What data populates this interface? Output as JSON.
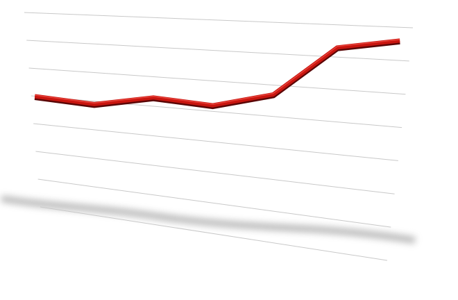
{
  "chart_data": {
    "type": "line",
    "categories": [
      null,
      null,
      null,
      null,
      null,
      null,
      null
    ],
    "values": [
      4,
      3.9,
      4.3,
      4.2,
      4.7,
      6.3,
      6.6
    ],
    "color": "#c8150f",
    "ylim": [
      0,
      7
    ],
    "yticks": [
      0,
      1,
      2,
      3,
      4,
      5,
      6,
      7
    ],
    "grid": true
  }
}
